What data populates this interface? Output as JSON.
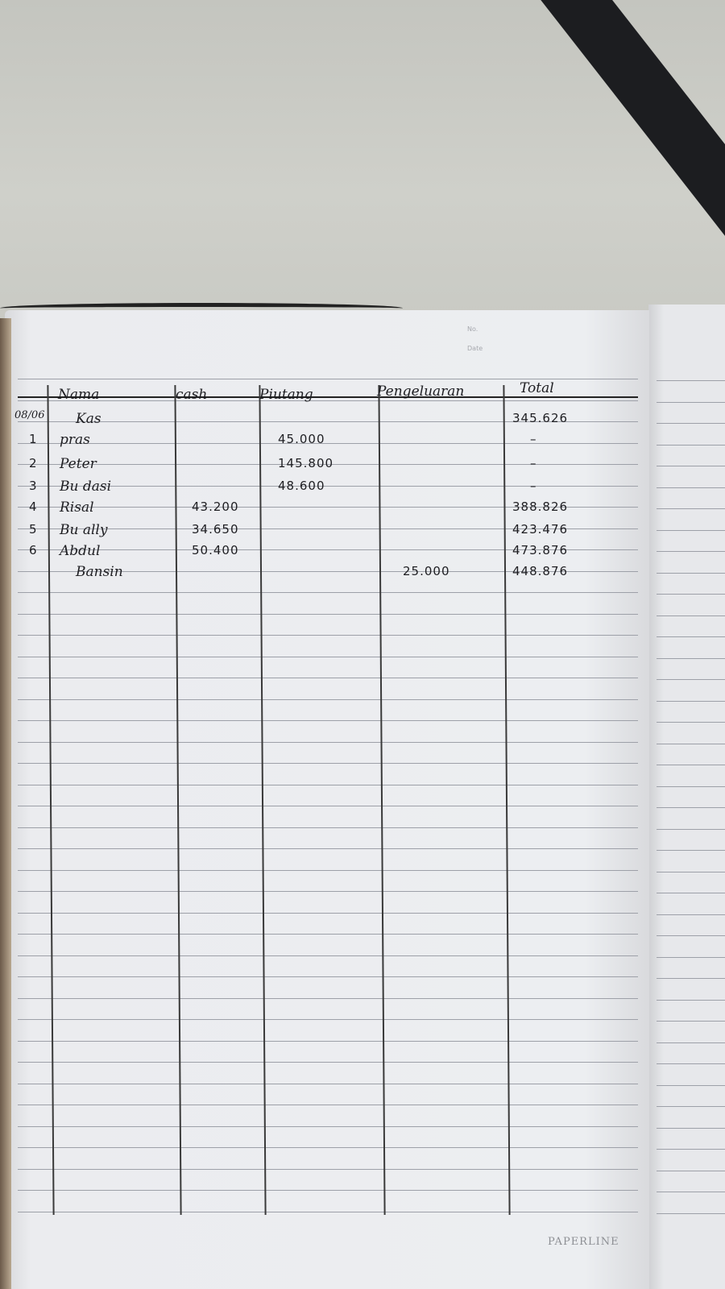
{
  "page_header": {
    "no_label": "No.",
    "date_label": "Date"
  },
  "ledger": {
    "columns": [
      "Nama",
      "cash",
      "Piutang",
      "Pengeluaran",
      "Total"
    ],
    "date": "08/06",
    "rows": [
      {
        "no": "",
        "nama": "Kas",
        "cash": "",
        "piutang": "",
        "pengeluaran": "",
        "total": "345.626"
      },
      {
        "no": "1",
        "nama": "pras",
        "cash": "",
        "piutang": "45.000",
        "pengeluaran": "",
        "total": "–"
      },
      {
        "no": "2",
        "nama": "Peter",
        "cash": "",
        "piutang": "145.800",
        "pengeluaran": "",
        "total": "–"
      },
      {
        "no": "3",
        "nama": "Bu dasi",
        "cash": "",
        "piutang": "48.600",
        "pengeluaran": "",
        "total": "–"
      },
      {
        "no": "4",
        "nama": "Risal",
        "cash": "43.200",
        "piutang": "",
        "pengeluaran": "",
        "total": "388.826"
      },
      {
        "no": "5",
        "nama": "Bu ally",
        "cash": "34.650",
        "piutang": "",
        "pengeluaran": "",
        "total": "423.476"
      },
      {
        "no": "6",
        "nama": "Abdul",
        "cash": "50.400",
        "piutang": "",
        "pengeluaran": "",
        "total": "473.876"
      },
      {
        "no": "",
        "nama": "Bansin",
        "cash": "",
        "piutang": "",
        "pengeluaran": "25.000",
        "total": "448.876"
      }
    ]
  },
  "brand": "PAPERLINE"
}
